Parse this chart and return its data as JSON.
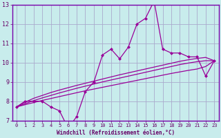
{
  "xlabel": "Windchill (Refroidissement éolien,°C)",
  "background_color": "#c8ecec",
  "grid_color": "#aaaacc",
  "line_color": "#990099",
  "spine_color": "#7700aa",
  "xmin": 0,
  "xmax": 23,
  "ymin": 7,
  "ymax": 13,
  "x_hours": [
    0,
    1,
    2,
    3,
    4,
    5,
    6,
    7,
    8,
    9,
    10,
    11,
    12,
    13,
    14,
    15,
    16,
    17,
    18,
    19,
    20,
    21,
    22,
    23
  ],
  "series_main": [
    7.7,
    8.0,
    8.0,
    8.0,
    7.7,
    7.5,
    6.6,
    7.2,
    8.5,
    9.0,
    10.4,
    10.7,
    10.2,
    10.8,
    12.0,
    12.3,
    13.2,
    10.7,
    10.5,
    10.5,
    10.3,
    10.3,
    9.3,
    10.1
  ],
  "series_smooth1": [
    7.7,
    7.95,
    8.15,
    8.3,
    8.45,
    8.58,
    8.7,
    8.82,
    8.93,
    9.04,
    9.15,
    9.26,
    9.37,
    9.47,
    9.57,
    9.67,
    9.77,
    9.87,
    9.97,
    10.07,
    10.15,
    10.22,
    10.27,
    10.1
  ],
  "series_smooth2": [
    7.7,
    7.87,
    8.03,
    8.17,
    8.3,
    8.43,
    8.55,
    8.67,
    8.78,
    8.89,
    9.0,
    9.1,
    9.2,
    9.3,
    9.4,
    9.5,
    9.6,
    9.7,
    9.8,
    9.9,
    9.98,
    10.05,
    10.1,
    10.1
  ],
  "series_smooth3": [
    7.7,
    7.82,
    7.93,
    8.04,
    8.14,
    8.24,
    8.34,
    8.44,
    8.54,
    8.63,
    8.72,
    8.81,
    8.9,
    8.99,
    9.08,
    9.17,
    9.26,
    9.35,
    9.44,
    9.52,
    9.6,
    9.67,
    9.8,
    10.1
  ]
}
